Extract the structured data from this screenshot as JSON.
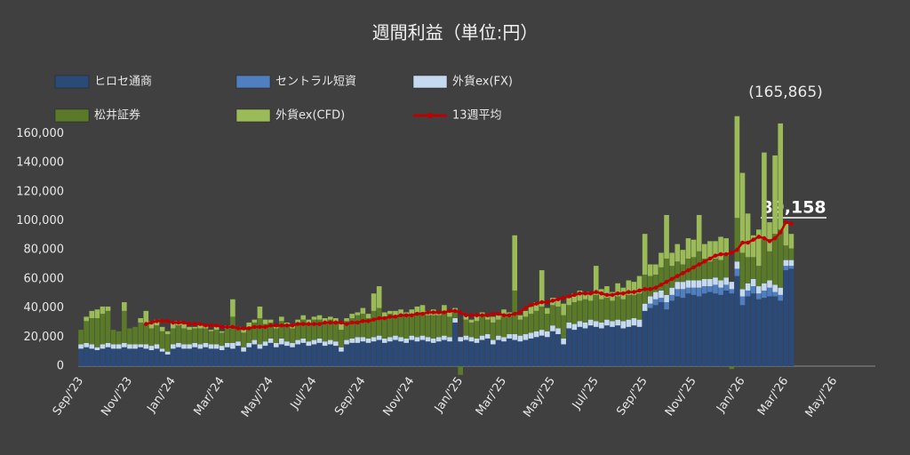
{
  "chart_data": {
    "type": "bar",
    "title": "週間利益（単位:円）",
    "categories": [
      "Sep/'23",
      null,
      null,
      null,
      null,
      null,
      null,
      null,
      null,
      "Nov/'23",
      null,
      null,
      null,
      null,
      null,
      null,
      null,
      "Jan/'24",
      null,
      null,
      null,
      null,
      null,
      null,
      null,
      null,
      "Mar/'24",
      null,
      null,
      null,
      null,
      null,
      null,
      null,
      null,
      "May/'24",
      null,
      null,
      null,
      null,
      null,
      null,
      null,
      "Jul/'24",
      null,
      null,
      null,
      null,
      null,
      null,
      null,
      null,
      "Sep/'24",
      null,
      null,
      null,
      null,
      null,
      null,
      null,
      null,
      "Nov/'24",
      null,
      null,
      null,
      null,
      null,
      null,
      null,
      null,
      "Jan/'25",
      null,
      null,
      null,
      null,
      null,
      null,
      null,
      "Mar/'25",
      null,
      null,
      null,
      null,
      null,
      null,
      null,
      null,
      "May/'25",
      null,
      null,
      null,
      null,
      null,
      null,
      null,
      "Jul/'25",
      null,
      null,
      null,
      null,
      null,
      null,
      null,
      null,
      "Sep/'25",
      null,
      null,
      null,
      null,
      null,
      null,
      null,
      null,
      "Nov/'25",
      null,
      null,
      null,
      null,
      null,
      null,
      null,
      null,
      "Jan/'26",
      null,
      null,
      null,
      null,
      null,
      null,
      null,
      "Mar/'26",
      null,
      null,
      null,
      null,
      null,
      null,
      null,
      null,
      "May/'26",
      null,
      null,
      null,
      null,
      null,
      null,
      null
    ],
    "ylim": [
      0,
      170000
    ],
    "yticks": [
      0,
      {
        "value": 20000,
        "label": "20,000"
      },
      {
        "value": 40000,
        "label": "40,000"
      },
      {
        "value": 60000,
        "label": "60,000"
      },
      {
        "value": 80000,
        "label": "80,000"
      },
      {
        "value": 100000,
        "label": "100,000"
      },
      {
        "value": 120000,
        "label": "120,000"
      },
      {
        "value": 140000,
        "label": "140,000"
      },
      {
        "value": 160000,
        "label": "160,000"
      }
    ],
    "stacked": true,
    "annotations": [
      "(165,865)",
      "89,158"
    ],
    "series": [
      {
        "name": "ヒロセ通商",
        "color": "#2b4a78",
        "values": [
          12000,
          13000,
          12000,
          11000,
          12000,
          13000,
          12000,
          12000,
          13000,
          12000,
          12000,
          13000,
          12000,
          11000,
          12000,
          10000,
          8000,
          12000,
          13000,
          12000,
          12000,
          13000,
          12000,
          13000,
          12000,
          12000,
          11000,
          13000,
          12000,
          14000,
          10000,
          13000,
          15000,
          12000,
          14000,
          16000,
          13000,
          15000,
          14000,
          13000,
          15000,
          16000,
          14000,
          15000,
          16000,
          14000,
          15000,
          14000,
          10000,
          15000,
          16000,
          16000,
          17000,
          16000,
          17000,
          18000,
          16000,
          17000,
          18000,
          17000,
          16000,
          18000,
          17000,
          18000,
          17000,
          16000,
          17000,
          18000,
          17000,
          30000,
          17000,
          18000,
          17000,
          16000,
          18000,
          19000,
          15000,
          18000,
          17000,
          19000,
          18000,
          17000,
          18000,
          19000,
          20000,
          21000,
          20000,
          24000,
          22000,
          15000,
          26000,
          25000,
          27000,
          26000,
          28000,
          27000,
          26000,
          28000,
          27000,
          28000,
          26000,
          27000,
          28000,
          27000,
          38000,
          40000,
          42000,
          44000,
          39000,
          45000,
          48000,
          47000,
          50000,
          49000,
          48000,
          50000,
          51000,
          50000,
          49000,
          52000,
          50000,
          62000,
          42000,
          48000,
          50000,
          46000,
          47000,
          48000,
          48000,
          45000,
          66000,
          67000,
          null,
          null,
          null,
          null,
          null,
          null,
          null,
          null,
          null,
          null,
          null,
          null,
          null,
          null,
          null
        ]
      },
      {
        "name": "セントラル短資",
        "color": "#4f7fc0",
        "values": [
          0,
          0,
          0,
          0,
          0,
          0,
          0,
          0,
          0,
          0,
          0,
          0,
          0,
          0,
          0,
          0,
          0,
          0,
          0,
          0,
          0,
          0,
          0,
          0,
          0,
          0,
          0,
          0,
          0,
          0,
          0,
          0,
          0,
          0,
          0,
          0,
          0,
          0,
          0,
          0,
          0,
          0,
          0,
          0,
          0,
          0,
          0,
          0,
          0,
          0,
          0,
          0,
          0,
          0,
          0,
          0,
          0,
          0,
          0,
          0,
          0,
          0,
          0,
          0,
          0,
          0,
          0,
          0,
          0,
          0,
          0,
          0,
          0,
          0,
          0,
          0,
          0,
          0,
          0,
          0,
          0,
          0,
          0,
          0,
          0,
          0,
          0,
          0,
          0,
          0,
          0,
          0,
          0,
          0,
          0,
          0,
          0,
          0,
          0,
          0,
          0,
          0,
          0,
          0,
          0,
          3000,
          4000,
          3000,
          5000,
          4000,
          5000,
          6000,
          4000,
          5000,
          6000,
          5000,
          4000,
          6000,
          5000,
          4000,
          3000,
          5000,
          6000,
          4000,
          5000,
          4000,
          5000,
          6000,
          3000,
          4000,
          3000,
          2000,
          null,
          null,
          null,
          null,
          null,
          null,
          null,
          null,
          null,
          null,
          null,
          null,
          null,
          null,
          null
        ]
      },
      {
        "name": "外貨ex(FX)",
        "color": "#c5d9f1",
        "values": [
          3000,
          3000,
          3000,
          2000,
          3000,
          3000,
          3000,
          3000,
          3000,
          3000,
          3000,
          2000,
          3000,
          3000,
          3000,
          2000,
          2000,
          3000,
          3000,
          3000,
          3000,
          3000,
          3000,
          3000,
          3000,
          3000,
          3000,
          3000,
          4000,
          3000,
          3000,
          3000,
          3000,
          3000,
          3000,
          3000,
          3000,
          4000,
          3000,
          3000,
          3000,
          3000,
          3000,
          3000,
          3000,
          3000,
          3000,
          3000,
          3000,
          3000,
          3000,
          4000,
          3000,
          3000,
          3000,
          3000,
          3000,
          3000,
          3000,
          3000,
          3000,
          3000,
          3000,
          3000,
          3000,
          3000,
          3000,
          3000,
          3000,
          3000,
          3000,
          3000,
          3000,
          3000,
          3000,
          3000,
          3000,
          3000,
          3000,
          3000,
          4000,
          4000,
          4000,
          4000,
          4000,
          4000,
          4000,
          4000,
          4000,
          4000,
          4000,
          4000,
          4000,
          4000,
          4000,
          4000,
          4000,
          4000,
          4000,
          4000,
          5000,
          5000,
          5000,
          5000,
          5000,
          5000,
          5000,
          5000,
          5000,
          5000,
          5000,
          5000,
          5000,
          5000,
          5000,
          5000,
          5000,
          5000,
          5000,
          5000,
          5000,
          5000,
          5000,
          5000,
          5000,
          5000,
          5000,
          5000,
          5000,
          5000,
          4000,
          4000,
          null,
          null,
          null,
          null,
          null,
          null,
          null,
          null,
          null,
          null,
          null,
          null,
          null,
          null,
          null
        ]
      },
      {
        "name": "松井証券",
        "color": "#5a7a2a",
        "values": [
          10000,
          15000,
          18000,
          20000,
          21000,
          22000,
          10000,
          9000,
          22000,
          11000,
          12000,
          15000,
          14000,
          12000,
          13000,
          12000,
          12000,
          11000,
          12000,
          11000,
          10000,
          10000,
          11000,
          10000,
          9000,
          10000,
          9000,
          10000,
          18000,
          9000,
          10000,
          11000,
          12000,
          18000,
          12000,
          11000,
          10000,
          12000,
          11000,
          10000,
          12000,
          13000,
          12000,
          14000,
          13000,
          12000,
          14000,
          13000,
          12000,
          13000,
          14000,
          15000,
          16000,
          14000,
          18000,
          19000,
          15000,
          16000,
          14000,
          15000,
          16000,
          15000,
          17000,
          16000,
          15000,
          16000,
          15000,
          17000,
          14000,
          5000,
          -6000,
          11000,
          10000,
          12000,
          13000,
          10000,
          12000,
          11000,
          14000,
          12000,
          30000,
          11000,
          12000,
          13000,
          14000,
          16000,
          12000,
          14000,
          15000,
          16000,
          12000,
          15000,
          14000,
          16000,
          13000,
          18000,
          16000,
          15000,
          14000,
          16000,
          15000,
          17000,
          16000,
          18000,
          20000,
          14000,
          12000,
          16000,
          25000,
          15000,
          14000,
          12000,
          15000,
          16000,
          20000,
          14000,
          12000,
          13000,
          14000,
          15000,
          -2000,
          30000,
          25000,
          18000,
          15000,
          14000,
          30000,
          20000,
          35000,
          40000,
          10000,
          8000,
          null,
          null,
          null,
          null,
          null,
          null,
          null,
          null,
          null,
          null,
          null,
          null,
          null,
          null,
          null
        ]
      },
      {
        "name": "外貨ex(CFD)",
        "color": "#9bbb59",
        "values": [
          0,
          3000,
          5000,
          6000,
          5000,
          3000,
          0,
          0,
          6000,
          0,
          0,
          3000,
          9000,
          5000,
          4000,
          3000,
          2000,
          5000,
          3000,
          4000,
          2000,
          1000,
          3000,
          2000,
          1000,
          2000,
          1000,
          2000,
          12000,
          1000,
          2000,
          3000,
          2000,
          8000,
          3000,
          2000,
          1000,
          3000,
          2000,
          3000,
          2000,
          3000,
          3000,
          2000,
          3000,
          4000,
          2000,
          3000,
          4000,
          2000,
          3000,
          2000,
          4000,
          3000,
          12000,
          15000,
          3000,
          2000,
          3000,
          4000,
          2000,
          3000,
          4000,
          5000,
          3000,
          4000,
          2000,
          4000,
          3000,
          2000,
          0,
          3000,
          2000,
          4000,
          3000,
          2000,
          4000,
          3000,
          5000,
          3000,
          38000,
          3000,
          4000,
          5000,
          6000,
          25000,
          4000,
          5000,
          6000,
          8000,
          5000,
          6000,
          7000,
          5000,
          6000,
          20000,
          7000,
          8000,
          6000,
          9000,
          8000,
          10000,
          9000,
          12000,
          28000,
          8000,
          7000,
          10000,
          30000,
          9000,
          12000,
          10000,
          14000,
          12000,
          25000,
          10000,
          14000,
          12000,
          16000,
          12000,
          0,
          70000,
          55000,
          30000,
          15000,
          25000,
          60000,
          20000,
          54000,
          73000,
          15000,
          10000,
          null,
          null,
          null,
          null,
          null,
          null,
          null,
          null,
          null,
          null,
          null,
          null,
          null,
          null,
          null
        ]
      },
      {
        "name": "13週平均",
        "color": "#c00000",
        "type": "line",
        "values": [
          null,
          null,
          null,
          null,
          null,
          null,
          null,
          null,
          null,
          null,
          null,
          null,
          29000,
          30000,
          31000,
          31000,
          31000,
          30000,
          30000,
          30000,
          29000,
          29000,
          29000,
          28000,
          28000,
          28000,
          27000,
          27000,
          27000,
          26000,
          26000,
          26000,
          27000,
          27000,
          27000,
          28000,
          28000,
          28000,
          28000,
          28000,
          29000,
          29000,
          29000,
          29000,
          29000,
          30000,
          30000,
          30000,
          30000,
          29000,
          30000,
          30000,
          31000,
          31000,
          32000,
          33000,
          33000,
          34000,
          34000,
          35000,
          35000,
          35000,
          36000,
          36000,
          37000,
          37000,
          37000,
          37000,
          38000,
          38000,
          37000,
          35000,
          35000,
          35000,
          35000,
          35000,
          36000,
          36000,
          35000,
          35000,
          36000,
          37000,
          40000,
          42000,
          43000,
          44000,
          44000,
          45000,
          46000,
          47000,
          48000,
          49000,
          50000,
          50000,
          50000,
          51000,
          50000,
          49000,
          49000,
          50000,
          50000,
          51000,
          51000,
          52000,
          53000,
          53000,
          54000,
          56000,
          58000,
          60000,
          62000,
          64000,
          66000,
          68000,
          70000,
          72000,
          74000,
          76000,
          77000,
          77000,
          78000,
          80000,
          85000,
          85000,
          87000,
          89000,
          88000,
          86000,
          88000,
          92000,
          99000,
          98000,
          null,
          null,
          null,
          null,
          null,
          null,
          null,
          null,
          null,
          null,
          null,
          null,
          null,
          null,
          null
        ]
      }
    ]
  }
}
